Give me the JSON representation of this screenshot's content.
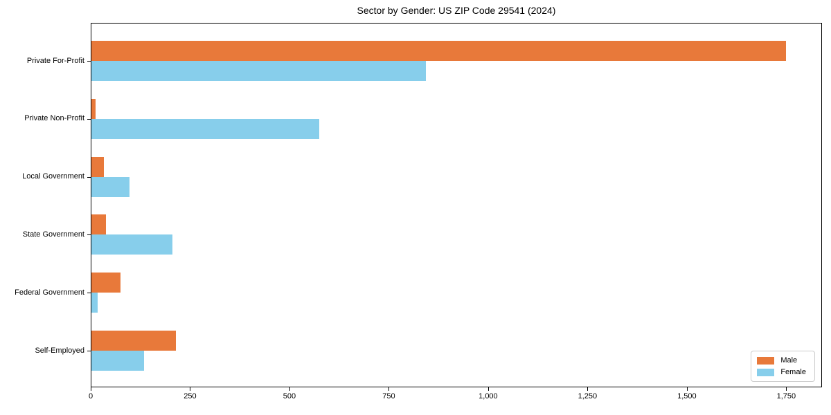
{
  "chart_data": {
    "type": "bar",
    "orientation": "horizontal",
    "title": "Sector by Gender: US ZIP Code 29541 (2024)",
    "categories": [
      "Private For-Profit",
      "Private Non-Profit",
      "Local Government",
      "State Government",
      "Federal Government",
      "Self-Employed"
    ],
    "series": [
      {
        "name": "Male",
        "color": "#e8793a",
        "values": [
          1748,
          10,
          31,
          37,
          73,
          212
        ]
      },
      {
        "name": "Female",
        "color": "#87ceeb",
        "values": [
          842,
          573,
          95,
          204,
          16,
          133
        ]
      }
    ],
    "xlabel": "",
    "ylabel": "",
    "xlim": [
      0,
      1840
    ],
    "xticks": [
      0,
      250,
      500,
      750,
      1000,
      1250,
      1500,
      1750
    ],
    "xtick_labels": [
      "0",
      "250",
      "500",
      "750",
      "1,000",
      "1,250",
      "1,500",
      "1,750"
    ],
    "grid": false,
    "legend_position": "lower right",
    "background": "#ffffff",
    "text_color": "#000000"
  }
}
